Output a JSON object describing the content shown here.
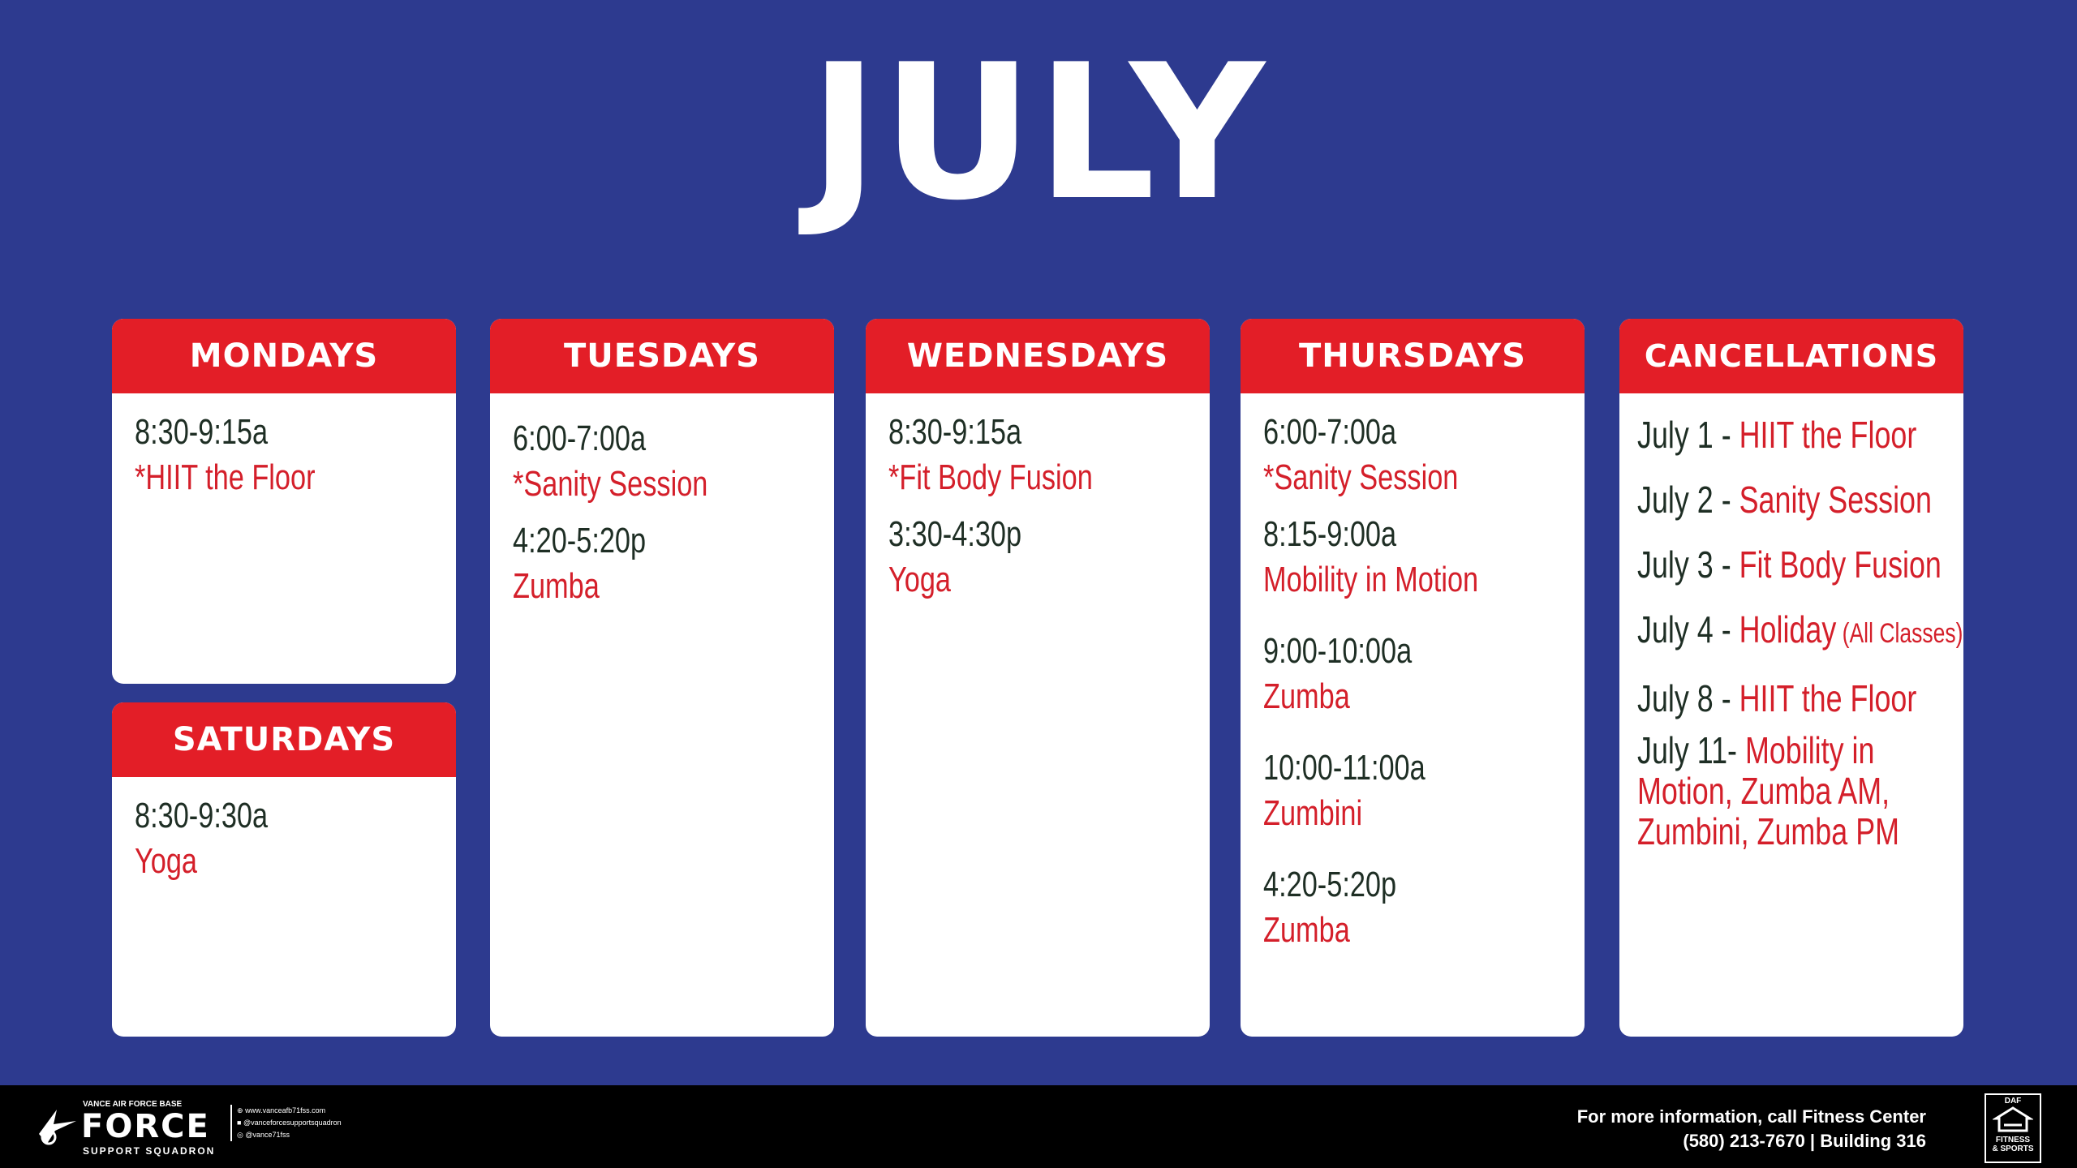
{
  "title": "JULY",
  "mondays": {
    "header": "MONDAYS",
    "slots": [
      {
        "time": "8:30-9:15a",
        "cls": "*HIIT the Floor"
      }
    ]
  },
  "saturdays": {
    "header": "SATURDAYS",
    "slots": [
      {
        "time": "8:30-9:30a",
        "cls": "Yoga"
      }
    ]
  },
  "tuesdays": {
    "header": "TUESDAYS",
    "slots": [
      {
        "time": "6:00-7:00a",
        "cls": "*Sanity Session"
      },
      {
        "time": "4:20-5:20p",
        "cls": "Zumba"
      }
    ]
  },
  "wednesdays": {
    "header": "WEDNESDAYS",
    "slots": [
      {
        "time": "8:30-9:15a",
        "cls": "*Fit Body Fusion"
      },
      {
        "time": "3:30-4:30p",
        "cls": "Yoga"
      }
    ]
  },
  "thursdays": {
    "header": "THURSDAYS",
    "slots": [
      {
        "time": "6:00-7:00a",
        "cls": "*Sanity Session"
      },
      {
        "time": "8:15-9:00a",
        "cls": "Mobility in Motion"
      },
      {
        "time": "9:00-10:00a",
        "cls": "Zumba"
      },
      {
        "time": "10:00-11:00a",
        "cls": "Zumbini"
      },
      {
        "time": "4:20-5:20p",
        "cls": "Zumba"
      }
    ]
  },
  "cancellations": {
    "header": "CANCELLATIONS",
    "items": [
      {
        "date": "July 1 - ",
        "cls": "HIIT the Floor",
        "note": ""
      },
      {
        "date": "July 2 - ",
        "cls": "Sanity Session",
        "note": ""
      },
      {
        "date": "July 3 - ",
        "cls": "Fit Body Fusion",
        "note": ""
      },
      {
        "date": "July 4 - ",
        "cls": "Holiday",
        "note": " (All Classes)"
      },
      {
        "date": "July 8 - ",
        "cls": "HIIT the Floor",
        "note": ""
      }
    ],
    "last": {
      "date": "July 11- ",
      "line1": "Mobility in",
      "line2": "Motion, Zumba AM,",
      "line3": "Zumbini, Zumba PM"
    }
  },
  "footer": {
    "base": "VANCE AIR FORCE BASE",
    "force": "FORCE",
    "squadron": "SUPPORT SQUADRON",
    "web": "www.vanceafb71fss.com",
    "facebook": "@vanceforcesupportsquadron",
    "instagram": "@vance71fss",
    "info1": "For more information, call Fitness Center",
    "info2": "(580) 213-7670  |  Building 316",
    "daf_top": "DAF",
    "daf_bottom1": "FITNESS",
    "daf_bottom2": "& SPORTS"
  },
  "colors": {
    "background": "#2d3a8f",
    "header_red": "#e31e27",
    "class_red": "#d41f2a",
    "time_dark": "#1e2e24"
  }
}
